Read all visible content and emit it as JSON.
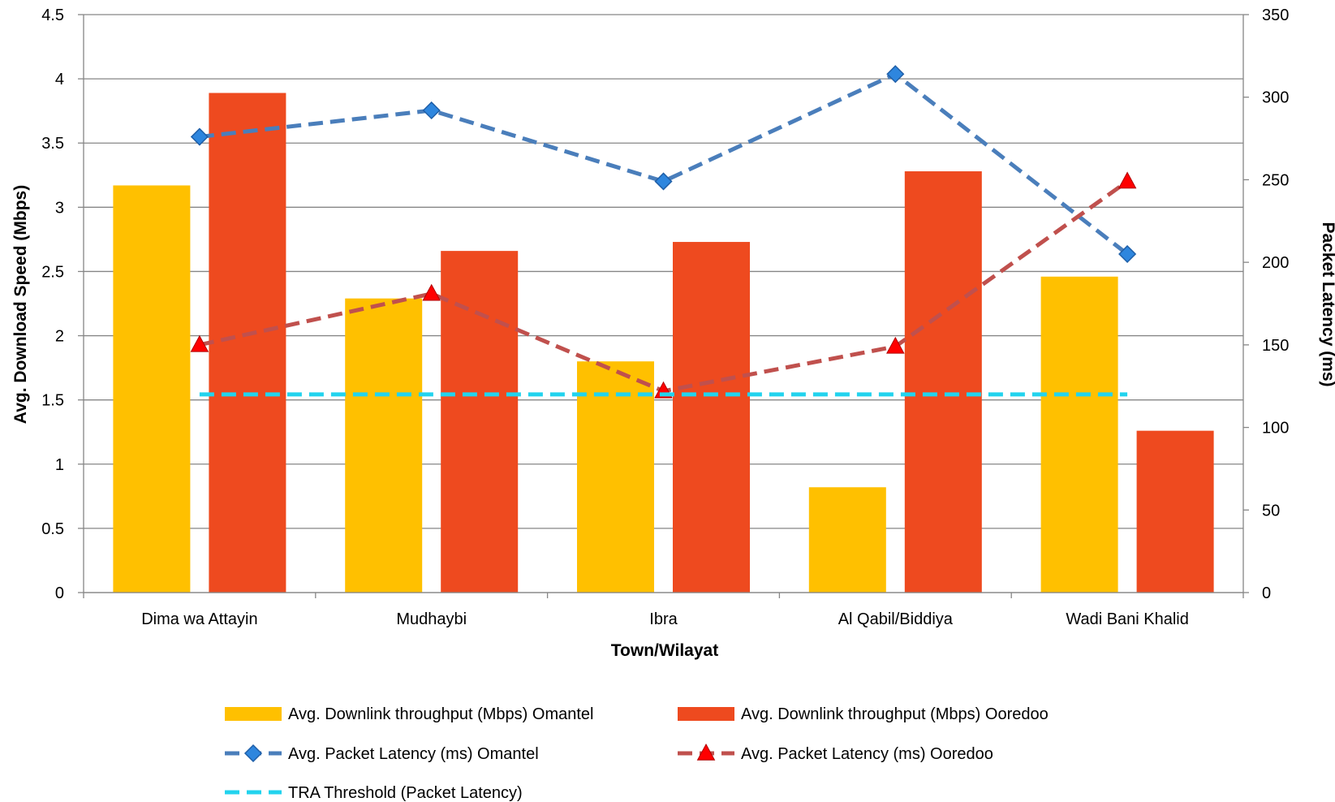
{
  "chart_data": {
    "type": "bar",
    "title": "",
    "xlabel": "Town/Wilayat",
    "ylabel": "Avg. Download Speed (Mbps)",
    "y2label": "Packet Latency (ms)",
    "categories": [
      "Dima wa Attayin",
      "Mudhaybi",
      "Ibra",
      "Al Qabil/Biddiya",
      "Wadi Bani Khalid"
    ],
    "ylim": [
      0,
      4.5
    ],
    "yticks": [
      "0",
      "0.5",
      "1",
      "1.5",
      "2",
      "2.5",
      "3",
      "3.5",
      "4",
      "4.5"
    ],
    "y2lim": [
      0,
      350
    ],
    "y2ticks": [
      "0",
      "50",
      "100",
      "150",
      "200",
      "250",
      "300",
      "350"
    ],
    "grid": true,
    "legend_position": "bottom",
    "bar_series": [
      {
        "name": "Avg. Downlink throughput (Mbps) Omantel",
        "values": [
          3.17,
          2.29,
          1.8,
          0.82,
          2.46
        ],
        "color": "#FFC000"
      },
      {
        "name": "Avg. Downlink throughput (Mbps) Ooredoo",
        "values": [
          3.89,
          2.66,
          2.73,
          3.28,
          1.26
        ],
        "color": "#EE4A1F"
      }
    ],
    "line_series": [
      {
        "name": "Avg. Packet Latency (ms) Omantel",
        "values": [
          276,
          292,
          249,
          314,
          205
        ],
        "color": "#4A7EBB",
        "marker": "diamond",
        "axis": "right"
      },
      {
        "name": "Avg. Packet Latency (ms) Ooredoo",
        "values": [
          150,
          181,
          122,
          149,
          249
        ],
        "color": "#C0504D",
        "marker_color": "#FF0000",
        "marker": "triangle",
        "axis": "right"
      },
      {
        "name": "TRA Threshold (Packet Latency)",
        "values": [
          120,
          120,
          120,
          120,
          120
        ],
        "color": "#22D3EE",
        "marker": "none",
        "axis": "right"
      }
    ]
  }
}
